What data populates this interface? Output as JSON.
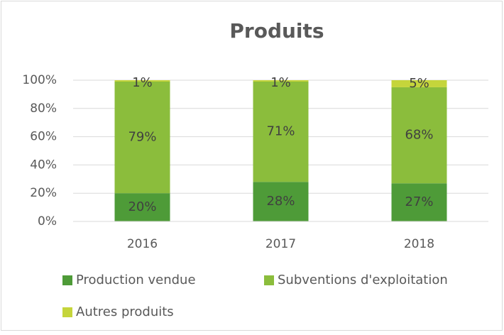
{
  "chart_data": {
    "type": "stacked_bar",
    "title": "Produits",
    "categories": [
      "2016",
      "2017",
      "2018"
    ],
    "series": [
      {
        "name": "Production vendue",
        "color": "#4e9b38",
        "values": [
          20,
          28,
          27
        ],
        "value_labels": [
          "20%",
          "28%",
          "27%"
        ]
      },
      {
        "name": "Subventions d'exploitation",
        "color": "#8bbd3c",
        "values": [
          79,
          71,
          68
        ],
        "value_labels": [
          "79%",
          "71%",
          "68%"
        ]
      },
      {
        "name": "Autres produits",
        "color": "#c5d53b",
        "values": [
          1,
          1,
          5
        ],
        "value_labels": [
          "1%",
          "1%",
          "5%"
        ]
      }
    ],
    "ylim": [
      0,
      100
    ],
    "yticks": [
      {
        "value": 0,
        "label": "0%"
      },
      {
        "value": 20,
        "label": "20%"
      },
      {
        "value": 40,
        "label": "40%"
      },
      {
        "value": 60,
        "label": "60%"
      },
      {
        "value": 80,
        "label": "80%"
      },
      {
        "value": 100,
        "label": "100%"
      }
    ],
    "grid": true,
    "legend": "bottom"
  }
}
